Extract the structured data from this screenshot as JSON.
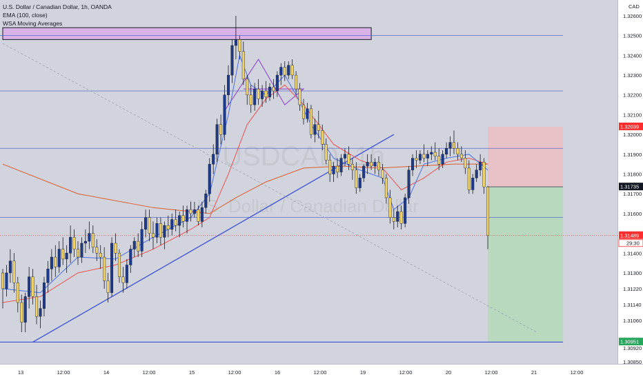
{
  "legend": {
    "symbol_line": "U.S. Dollar / Canadian Dollar, 1h, OANDA",
    "ema_line": "EMA (100, close)",
    "wsa_line": "WSA Moving Averages"
  },
  "watermark": {
    "ticker": "USDCAD, 1h",
    "name": "U.S. Dollar / Canadian Dollar"
  },
  "colors": {
    "background": "#d1d4dc",
    "candle_up": "#1e3a8a",
    "candle_down": "#f0d26a",
    "ema": "#e05a2b",
    "wsa_fast": "#4c6ee6",
    "wsa_slow": "#f05050",
    "trendline": "#3d4fd6",
    "zone_fill": "#d9b3e8",
    "target_fill": "#b9d9be",
    "stop_fill": "#e8c2c6",
    "price_badge": "#ff2e2e",
    "target_badge": "#26a65b",
    "last_badge": "#131722"
  },
  "price_axis": {
    "currency": "CAD",
    "labels": [
      "1.32600",
      "1.32500",
      "1.32400",
      "1.32300",
      "1.32200",
      "1.32100",
      "1.32000",
      "1.31900",
      "1.31800",
      "1.31700",
      "1.31600",
      "1.31400",
      "1.31300",
      "1.31220",
      "1.31140",
      "1.31060",
      "1.30920",
      "1.30850"
    ]
  },
  "badges": {
    "stop": "1.32039",
    "last": "1.31735",
    "current_price": "1.31489",
    "countdown": "29:30",
    "target": "1.30951"
  },
  "time_axis": {
    "labels": [
      "13",
      "12:00",
      "14",
      "12:00",
      "15",
      "12:00",
      "16",
      "12:00",
      "19",
      "12:00",
      "20",
      "12:00",
      "21",
      "12:00"
    ]
  },
  "chart_data": {
    "type": "candlestick",
    "symbol": "USDCAD",
    "interval": "1h",
    "ylim": [
      1.3084,
      1.3268
    ],
    "x_range": [
      0,
      149
    ],
    "candles": [
      [
        1.313,
        1.3132,
        1.3112,
        1.3122
      ],
      [
        1.3122,
        1.3134,
        1.3118,
        1.313
      ],
      [
        1.313,
        1.3142,
        1.3125,
        1.3136
      ],
      [
        1.3136,
        1.314,
        1.312,
        1.3125
      ],
      [
        1.3125,
        1.3128,
        1.311,
        1.3115
      ],
      [
        1.3115,
        1.3119,
        1.31,
        1.3105
      ],
      [
        1.3105,
        1.312,
        1.31,
        1.3118
      ],
      [
        1.3118,
        1.3133,
        1.3112,
        1.3128
      ],
      [
        1.3128,
        1.3132,
        1.3114,
        1.3118
      ],
      [
        1.3118,
        1.3124,
        1.3104,
        1.3108
      ],
      [
        1.3108,
        1.3116,
        1.3102,
        1.3112
      ],
      [
        1.3112,
        1.3128,
        1.3108,
        1.3125
      ],
      [
        1.3125,
        1.3136,
        1.312,
        1.3132
      ],
      [
        1.3132,
        1.3142,
        1.3126,
        1.3138
      ],
      [
        1.3138,
        1.3144,
        1.3128,
        1.3133
      ],
      [
        1.3133,
        1.3146,
        1.313,
        1.3142
      ],
      [
        1.3142,
        1.3148,
        1.3134,
        1.3137
      ],
      [
        1.3137,
        1.3144,
        1.313,
        1.314
      ],
      [
        1.314,
        1.3154,
        1.3135,
        1.3148
      ],
      [
        1.3148,
        1.3152,
        1.3138,
        1.3142
      ],
      [
        1.3142,
        1.3146,
        1.3134,
        1.3138
      ],
      [
        1.3138,
        1.3148,
        1.3135,
        1.3145
      ],
      [
        1.3145,
        1.3152,
        1.314,
        1.3146
      ],
      [
        1.3146,
        1.3156,
        1.3142,
        1.315
      ],
      [
        1.315,
        1.3154,
        1.314,
        1.3143
      ],
      [
        1.3143,
        1.3147,
        1.3136,
        1.314
      ],
      [
        1.314,
        1.3144,
        1.3132,
        1.3138
      ],
      [
        1.3138,
        1.3143,
        1.3122,
        1.3126
      ],
      [
        1.3126,
        1.313,
        1.3115,
        1.312
      ],
      [
        1.312,
        1.3148,
        1.3118,
        1.3145
      ],
      [
        1.3145,
        1.315,
        1.3136,
        1.314
      ],
      [
        1.314,
        1.3142,
        1.3125,
        1.3128
      ],
      [
        1.3128,
        1.3133,
        1.312,
        1.3125
      ],
      [
        1.3125,
        1.3137,
        1.3122,
        1.3134
      ],
      [
        1.3134,
        1.3144,
        1.313,
        1.3142
      ],
      [
        1.3142,
        1.3148,
        1.3138,
        1.3146
      ],
      [
        1.3146,
        1.315,
        1.3138,
        1.3141
      ],
      [
        1.3141,
        1.3156,
        1.3138,
        1.3152
      ],
      [
        1.3152,
        1.3162,
        1.3148,
        1.3158
      ],
      [
        1.3158,
        1.3162,
        1.3146,
        1.315
      ],
      [
        1.315,
        1.3156,
        1.3142,
        1.3148
      ],
      [
        1.3148,
        1.3158,
        1.3145,
        1.3155
      ],
      [
        1.3155,
        1.3158,
        1.3144,
        1.3148
      ],
      [
        1.3148,
        1.3156,
        1.3142,
        1.3154
      ],
      [
        1.3154,
        1.3159,
        1.3148,
        1.3152
      ],
      [
        1.3152,
        1.316,
        1.3149,
        1.3157
      ],
      [
        1.3157,
        1.3162,
        1.3151,
        1.3154
      ],
      [
        1.3154,
        1.3161,
        1.3148,
        1.3159
      ],
      [
        1.3159,
        1.3164,
        1.3153,
        1.3156
      ],
      [
        1.3156,
        1.3164,
        1.315,
        1.3162
      ],
      [
        1.3162,
        1.3166,
        1.3156,
        1.316
      ],
      [
        1.316,
        1.3166,
        1.3158,
        1.3162
      ],
      [
        1.3162,
        1.3164,
        1.3154,
        1.3156
      ],
      [
        1.3156,
        1.3166,
        1.3153,
        1.3163
      ],
      [
        1.3163,
        1.3172,
        1.316,
        1.317
      ],
      [
        1.317,
        1.3188,
        1.3166,
        1.3185
      ],
      [
        1.3185,
        1.3195,
        1.318,
        1.319
      ],
      [
        1.319,
        1.3208,
        1.3186,
        1.3205
      ],
      [
        1.3205,
        1.321,
        1.3195,
        1.32
      ],
      [
        1.32,
        1.3225,
        1.3197,
        1.322
      ],
      [
        1.322,
        1.3235,
        1.3215,
        1.323
      ],
      [
        1.323,
        1.3248,
        1.3226,
        1.3245
      ],
      [
        1.3245,
        1.326,
        1.3238,
        1.3248
      ],
      [
        1.3248,
        1.325,
        1.3238,
        1.3242
      ],
      [
        1.3242,
        1.3247,
        1.3225,
        1.3228
      ],
      [
        1.3228,
        1.323,
        1.3215,
        1.322
      ],
      [
        1.322,
        1.3225,
        1.3211,
        1.3215
      ],
      [
        1.3215,
        1.3226,
        1.3212,
        1.3223
      ],
      [
        1.3223,
        1.3228,
        1.3215,
        1.3218
      ],
      [
        1.3218,
        1.3225,
        1.3214,
        1.3222
      ],
      [
        1.3222,
        1.3227,
        1.3216,
        1.3219
      ],
      [
        1.3219,
        1.3226,
        1.3217,
        1.3224
      ],
      [
        1.3224,
        1.3228,
        1.3218,
        1.3222
      ],
      [
        1.3222,
        1.3232,
        1.3219,
        1.323
      ],
      [
        1.323,
        1.3236,
        1.3225,
        1.3234
      ],
      [
        1.3234,
        1.3237,
        1.3227,
        1.323
      ],
      [
        1.323,
        1.3237,
        1.3228,
        1.3235
      ],
      [
        1.3235,
        1.3238,
        1.3228,
        1.323
      ],
      [
        1.323,
        1.3232,
        1.322,
        1.3223
      ],
      [
        1.3223,
        1.3226,
        1.3212,
        1.3215
      ],
      [
        1.3215,
        1.3218,
        1.3205,
        1.3208
      ],
      [
        1.3208,
        1.3216,
        1.3206,
        1.3213
      ],
      [
        1.3213,
        1.3215,
        1.3198,
        1.32
      ],
      [
        1.32,
        1.3208,
        1.3196,
        1.3205
      ],
      [
        1.3205,
        1.3212,
        1.3198,
        1.3202
      ],
      [
        1.3202,
        1.3205,
        1.3192,
        1.3195
      ],
      [
        1.3195,
        1.3198,
        1.3185,
        1.3187
      ],
      [
        1.3187,
        1.319,
        1.3176,
        1.318
      ],
      [
        1.318,
        1.3186,
        1.3176,
        1.3184
      ],
      [
        1.3184,
        1.3188,
        1.3178,
        1.3181
      ],
      [
        1.3181,
        1.319,
        1.3179,
        1.3188
      ],
      [
        1.3188,
        1.3193,
        1.3184,
        1.319
      ],
      [
        1.319,
        1.3194,
        1.3182,
        1.3185
      ],
      [
        1.3185,
        1.3188,
        1.3177,
        1.3182
      ],
      [
        1.3182,
        1.3186,
        1.317,
        1.3173
      ],
      [
        1.3173,
        1.318,
        1.3171,
        1.3178
      ],
      [
        1.3178,
        1.3185,
        1.3176,
        1.3184
      ],
      [
        1.3184,
        1.319,
        1.318,
        1.3186
      ],
      [
        1.3186,
        1.319,
        1.3182,
        1.3184
      ],
      [
        1.3184,
        1.3188,
        1.318,
        1.3186
      ],
      [
        1.3186,
        1.3189,
        1.3179,
        1.3182
      ],
      [
        1.3182,
        1.3185,
        1.3175,
        1.3178
      ],
      [
        1.3178,
        1.318,
        1.3165,
        1.3168
      ],
      [
        1.3168,
        1.3172,
        1.3155,
        1.3158
      ],
      [
        1.3158,
        1.3162,
        1.3152,
        1.3156
      ],
      [
        1.3156,
        1.3164,
        1.3153,
        1.3161
      ],
      [
        1.3161,
        1.3164,
        1.3152,
        1.3155
      ],
      [
        1.3155,
        1.317,
        1.3153,
        1.3168
      ],
      [
        1.3168,
        1.3184,
        1.3165,
        1.3182
      ],
      [
        1.3182,
        1.319,
        1.3179,
        1.3188
      ],
      [
        1.3188,
        1.3192,
        1.3183,
        1.3187
      ],
      [
        1.3187,
        1.3192,
        1.3185,
        1.319
      ],
      [
        1.319,
        1.3195,
        1.3186,
        1.3188
      ],
      [
        1.3188,
        1.3192,
        1.3184,
        1.319
      ],
      [
        1.319,
        1.3194,
        1.3187,
        1.3191
      ],
      [
        1.3191,
        1.3196,
        1.3187,
        1.3189
      ],
      [
        1.3189,
        1.3193,
        1.3182,
        1.3185
      ],
      [
        1.3185,
        1.3192,
        1.3183,
        1.319
      ],
      [
        1.319,
        1.3196,
        1.3188,
        1.3193
      ],
      [
        1.3193,
        1.3199,
        1.3189,
        1.3196
      ],
      [
        1.3196,
        1.3202,
        1.319,
        1.3193
      ],
      [
        1.3193,
        1.3196,
        1.3187,
        1.319
      ],
      [
        1.319,
        1.3194,
        1.3186,
        1.3188
      ],
      [
        1.3188,
        1.3192,
        1.318,
        1.3183
      ],
      [
        1.3183,
        1.3187,
        1.317,
        1.3172
      ],
      [
        1.3172,
        1.318,
        1.317,
        1.3178
      ],
      [
        1.3178,
        1.3185,
        1.3176,
        1.3182
      ],
      [
        1.3182,
        1.319,
        1.3179,
        1.3186
      ],
      [
        1.3186,
        1.3188,
        1.317,
        1.31735
      ],
      [
        1.31735,
        1.3174,
        1.3142,
        1.31489
      ]
    ],
    "ema_100": [
      [
        0,
        1.3185
      ],
      [
        20,
        1.317
      ],
      [
        40,
        1.3163
      ],
      [
        55,
        1.316
      ],
      [
        62,
        1.3168
      ],
      [
        70,
        1.3176
      ],
      [
        80,
        1.3183
      ],
      [
        90,
        1.3184
      ],
      [
        100,
        1.3183
      ],
      [
        110,
        1.3184
      ],
      [
        120,
        1.3185
      ],
      [
        129,
        1.3185
      ]
    ],
    "wsa_fast": [
      [
        0,
        1.3122
      ],
      [
        10,
        1.312
      ],
      [
        20,
        1.3138
      ],
      [
        30,
        1.3137
      ],
      [
        40,
        1.3148
      ],
      [
        50,
        1.3158
      ],
      [
        55,
        1.317
      ],
      [
        60,
        1.321
      ],
      [
        63,
        1.324
      ],
      [
        66,
        1.3225
      ],
      [
        70,
        1.322
      ],
      [
        75,
        1.323
      ],
      [
        78,
        1.322
      ],
      [
        82,
        1.3205
      ],
      [
        88,
        1.3188
      ],
      [
        95,
        1.3182
      ],
      [
        101,
        1.3178
      ],
      [
        104,
        1.3162
      ],
      [
        108,
        1.3168
      ],
      [
        112,
        1.3185
      ],
      [
        118,
        1.3188
      ],
      [
        124,
        1.319
      ],
      [
        129,
        1.3182
      ]
    ],
    "wsa_slow": [
      [
        0,
        1.3115
      ],
      [
        10,
        1.3118
      ],
      [
        20,
        1.313
      ],
      [
        30,
        1.3134
      ],
      [
        40,
        1.3142
      ],
      [
        50,
        1.3152
      ],
      [
        55,
        1.3158
      ],
      [
        60,
        1.318
      ],
      [
        65,
        1.3205
      ],
      [
        70,
        1.3218
      ],
      [
        75,
        1.3225
      ],
      [
        80,
        1.3215
      ],
      [
        88,
        1.3195
      ],
      [
        95,
        1.3187
      ],
      [
        101,
        1.3183
      ],
      [
        106,
        1.3172
      ],
      [
        112,
        1.3178
      ],
      [
        118,
        1.3186
      ],
      [
        124,
        1.3188
      ],
      [
        129,
        1.3185
      ]
    ],
    "horizontal_lines": [
      1.325,
      1.3222,
      1.3193,
      1.3158,
      1.3095
    ],
    "current_price_line": 1.31489,
    "trendlines": [
      {
        "from": [
          8,
          1.3095
        ],
        "to": [
          104,
          1.32
        ]
      },
      {
        "from": [
          0,
          1.3246
        ],
        "to": [
          142,
          1.31
        ]
      }
    ],
    "wedge": [
      [
        59,
        1.3212
      ],
      [
        68,
        1.3238
      ],
      [
        75,
        1.3215
      ],
      [
        80,
        1.3223
      ],
      [
        64,
        1.3223
      ]
    ],
    "resistance_zone": {
      "x": [
        0,
        98
      ],
      "y": [
        1.3248,
        1.3254
      ]
    },
    "position": {
      "type": "short",
      "x": [
        129,
        149
      ],
      "entry": 1.31735,
      "stop": 1.32039,
      "target": 1.30951
    },
    "grid": false
  }
}
